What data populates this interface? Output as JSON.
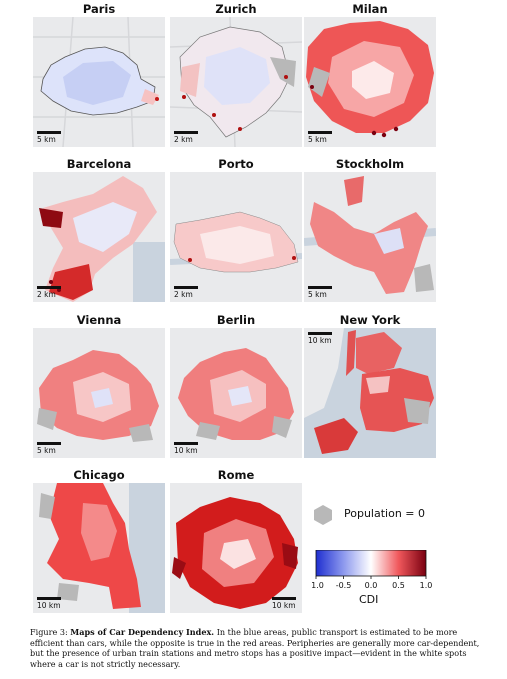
{
  "panels": [
    {
      "city": "Paris",
      "scale": "5 km"
    },
    {
      "city": "Zurich",
      "scale": "2 km"
    },
    {
      "city": "Milan",
      "scale": "5 km"
    },
    {
      "city": "Barcelona",
      "scale": "2 km"
    },
    {
      "city": "Porto",
      "scale": "2 km"
    },
    {
      "city": "Stockholm",
      "scale": "5 km"
    },
    {
      "city": "Vienna",
      "scale": "5 km"
    },
    {
      "city": "Berlin",
      "scale": "10 km"
    },
    {
      "city": "New York",
      "scale": "10 km"
    },
    {
      "city": "Chicago",
      "scale": "10 km"
    },
    {
      "city": "Rome",
      "scale": "10 km"
    }
  ],
  "legend": {
    "population_label": "Population = 0",
    "colorbar_label": "CDI",
    "ticks": [
      "-1.0",
      "-0.5",
      "0.0",
      "0.5",
      "1.0"
    ],
    "colors": {
      "low": "#1f2fd0",
      "mid": "#ffffff",
      "high": "#7a0010",
      "nodata": "#b8b8b8"
    }
  },
  "caption": {
    "prefix": "Figure 3: ",
    "title": "Maps of Car Dependency Index.",
    "body": " In the blue areas, public transport is estimated to be more efficient than cars, while the opposite is true in the red areas. Peripheries are generally more car-dependent, but the presence of urban train stations and metro stops has a positive impact—evident in the white spots where a car is not strictly necessary."
  }
}
